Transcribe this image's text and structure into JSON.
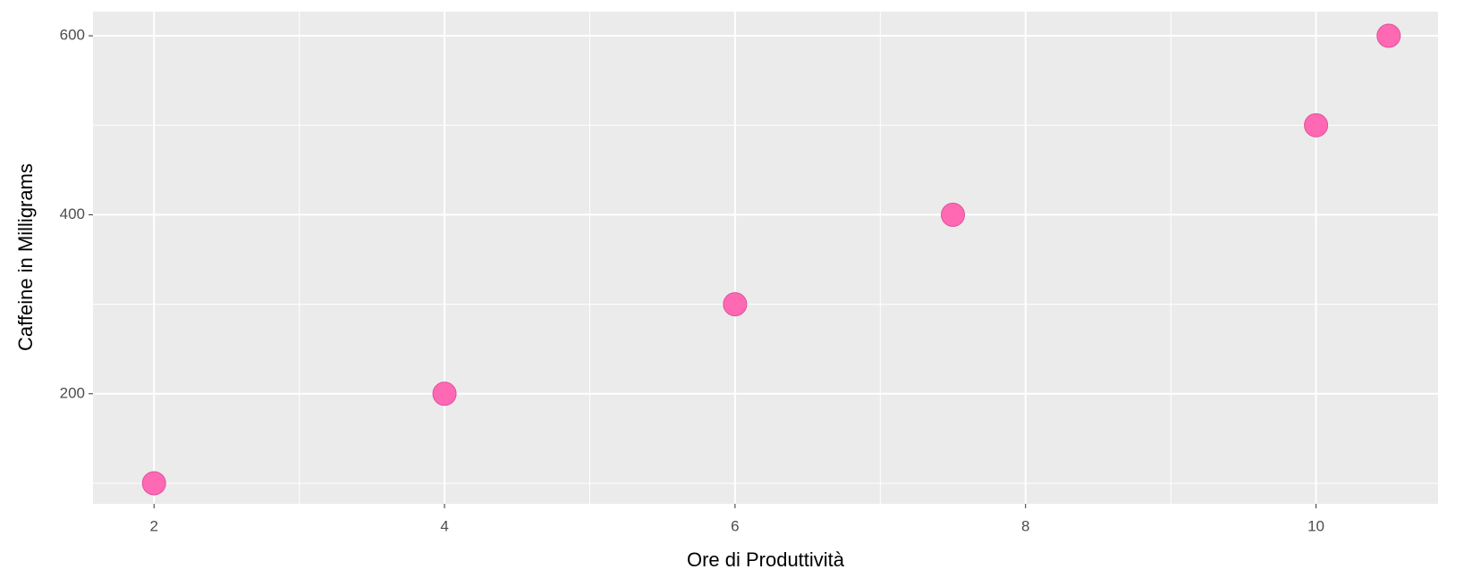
{
  "chart_data": {
    "type": "scatter",
    "x_label": "Ore di Produttività",
    "y_label": "Caffeine in Milligrams",
    "x": [
      2,
      4,
      6,
      7.5,
      10,
      10.5
    ],
    "values": [
      100,
      200,
      300,
      400,
      500,
      600
    ],
    "color": "#ff69b4",
    "xlim": [
      1.58,
      10.84
    ],
    "xticks": [
      2,
      4,
      6,
      8,
      10
    ],
    "ylim": [
      77,
      627
    ],
    "yticks": [
      200,
      400,
      600
    ],
    "x_minor_grid": [
      3,
      5,
      7,
      9
    ],
    "y_minor_grid": [
      100,
      300,
      500
    ],
    "grid": true
  }
}
